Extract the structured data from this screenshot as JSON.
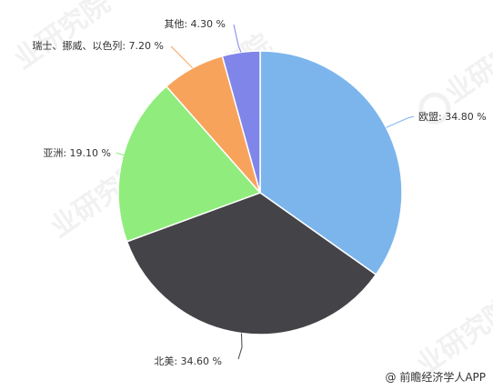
{
  "chart_data": {
    "type": "pie",
    "slices": [
      {
        "label": "欧盟",
        "value": 34.8,
        "display": "欧盟: 34.80 %",
        "color": "#7cb5ec"
      },
      {
        "label": "北美",
        "value": 34.6,
        "display": "北美: 34.60 %",
        "color": "#434348"
      },
      {
        "label": "亚洲",
        "value": 19.1,
        "display": "亚洲: 19.10 %",
        "color": "#90ed7d"
      },
      {
        "label": "瑞士、挪威、以色列",
        "value": 7.2,
        "display": "瑞士、挪威、以色列: 7.20 %",
        "color": "#f7a35c"
      },
      {
        "label": "其他",
        "value": 4.3,
        "display": "其他: 4.30 %",
        "color": "#8085e9"
      }
    ],
    "start_angle_deg": 0,
    "direction": "clockwise"
  },
  "watermark": {
    "text": "业研究院"
  },
  "credit": {
    "text": "@ 前瞻经济学人APP"
  }
}
